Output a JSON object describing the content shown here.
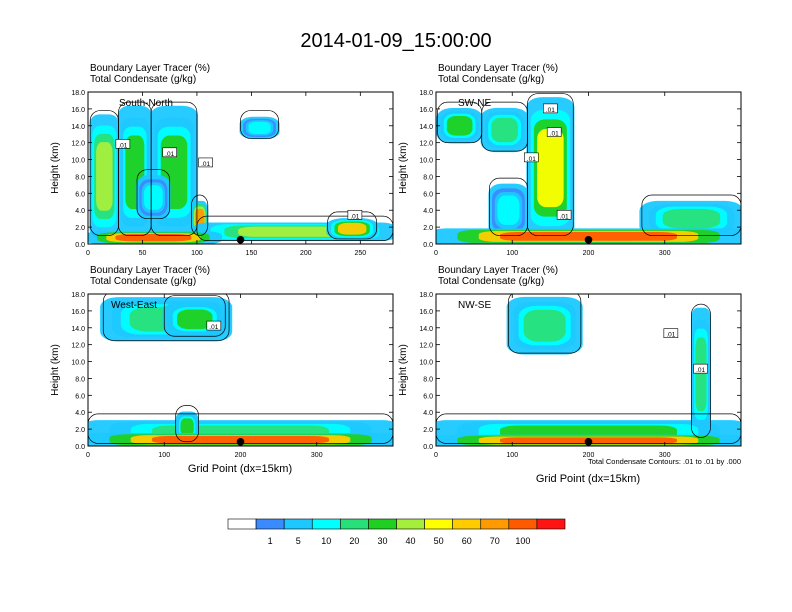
{
  "title": "2014-01-09_15:00:00",
  "chart_data": [
    {
      "type": "heatmap",
      "name": "South-North",
      "panel_label": "South-North",
      "subtitle_line1": "Boundary Layer Tracer   (%)",
      "subtitle_line2": "Total Condensate   (g/kg)",
      "ylabel": "Height (km)",
      "xlabel": "",
      "xlim": [
        0,
        280
      ],
      "ylim": [
        0,
        18
      ],
      "x_ticks": [
        "0",
        "50",
        "100",
        "150",
        "200",
        "250"
      ],
      "x_tick_values": [
        0,
        50,
        100,
        150,
        200,
        250
      ],
      "y_ticks": [
        "0.0",
        "2.0",
        "4.0",
        "6.0",
        "8.0",
        "10.0",
        "12.0",
        "14.0",
        "16.0",
        "18.0"
      ],
      "marker_x": 140,
      "contour_labels": [
        {
          "text": ".01",
          "x": 32,
          "y": 11.8
        },
        {
          "text": ".01",
          "x": 75,
          "y": 10.8
        },
        {
          "text": ".01",
          "x": 108,
          "y": 9.6
        },
        {
          "text": ".01",
          "x": 245,
          "y": 3.4
        }
      ],
      "blobs": [
        {
          "x0": 2,
          "x1": 28,
          "y0": 1,
          "y1": 15,
          "level": 40
        },
        {
          "x0": 28,
          "x1": 58,
          "y0": 1,
          "y1": 16,
          "level": 30
        },
        {
          "x0": 58,
          "x1": 100,
          "y0": 1,
          "y1": 16,
          "level": 30
        },
        {
          "x0": 95,
          "x1": 110,
          "y0": 1,
          "y1": 5,
          "level": 70
        },
        {
          "x0": 45,
          "x1": 75,
          "y0": 3,
          "y1": 8,
          "level": 10
        },
        {
          "x0": 140,
          "x1": 175,
          "y0": 12.5,
          "y1": 15,
          "level": 10
        },
        {
          "x0": 100,
          "x1": 280,
          "y0": 0.4,
          "y1": 2.5,
          "level": 40
        },
        {
          "x0": 220,
          "x1": 265,
          "y0": 0.6,
          "y1": 3,
          "level": 60
        },
        {
          "x0": 0,
          "x1": 120,
          "y0": 0,
          "y1": 1.5,
          "level": 100
        }
      ]
    },
    {
      "type": "heatmap",
      "name": "SW-NE",
      "panel_label": "SW-NE",
      "subtitle_line1": "Boundary Layer Tracer   (%)",
      "subtitle_line2": "Total Condensate   (g/kg)",
      "ylabel": "Height (km)",
      "xlabel": "",
      "xlim": [
        0,
        400
      ],
      "ylim": [
        0,
        18
      ],
      "x_ticks": [
        "0",
        "100",
        "200",
        "300"
      ],
      "x_tick_values": [
        0,
        100,
        200,
        300
      ],
      "y_ticks": [
        "0.0",
        "2.0",
        "4.0",
        "6.0",
        "8.0",
        "10.0",
        "12.0",
        "14.0",
        "16.0",
        "18.0"
      ],
      "marker_x": 200,
      "contour_labels": [
        {
          "text": ".01",
          "x": 150,
          "y": 16
        },
        {
          "text": ".01",
          "x": 155,
          "y": 13.2
        },
        {
          "text": ".01",
          "x": 125,
          "y": 10.2
        },
        {
          "text": ".01",
          "x": 168,
          "y": 3.4
        }
      ],
      "blobs": [
        {
          "x0": 2,
          "x1": 60,
          "y0": 12,
          "y1": 16,
          "level": 30
        },
        {
          "x0": 60,
          "x1": 120,
          "y0": 11,
          "y1": 16,
          "level": 20
        },
        {
          "x0": 120,
          "x1": 180,
          "y0": 1,
          "y1": 17,
          "level": 50
        },
        {
          "x0": 70,
          "x1": 120,
          "y0": 1,
          "y1": 7,
          "level": 10
        },
        {
          "x0": 270,
          "x1": 400,
          "y0": 1,
          "y1": 5,
          "level": 20
        },
        {
          "x0": 0,
          "x1": 400,
          "y0": 0,
          "y1": 1.8,
          "level": 100
        }
      ]
    },
    {
      "type": "heatmap",
      "name": "West-East",
      "panel_label": "West-East",
      "subtitle_line1": "Boundary Layer Tracer   (%)",
      "subtitle_line2": "Total Condensate   (g/kg)",
      "ylabel": "Height (km)",
      "xlabel": "Grid Point (dx=15km)",
      "xlim": [
        0,
        400
      ],
      "ylim": [
        0,
        18
      ],
      "x_ticks": [
        "0",
        "100",
        "200",
        "300"
      ],
      "x_tick_values": [
        0,
        100,
        200,
        300
      ],
      "y_ticks": [
        "0.0",
        "2.0",
        "4.0",
        "6.0",
        "8.0",
        "10.0",
        "12.0",
        "14.0",
        "16.0",
        "18.0"
      ],
      "marker_x": 200,
      "contour_labels": [
        {
          "text": ".01",
          "x": 165,
          "y": 14.2
        }
      ],
      "blobs": [
        {
          "x0": 20,
          "x1": 185,
          "y0": 12.5,
          "y1": 17.5,
          "level": 20
        },
        {
          "x0": 100,
          "x1": 180,
          "y0": 13,
          "y1": 17,
          "level": 30
        },
        {
          "x0": 0,
          "x1": 400,
          "y0": 0.3,
          "y1": 3,
          "level": 20
        },
        {
          "x0": 115,
          "x1": 145,
          "y0": 0.5,
          "y1": 4,
          "level": 30
        },
        {
          "x0": 0,
          "x1": 400,
          "y0": 0,
          "y1": 1.5,
          "level": 100
        }
      ]
    },
    {
      "type": "heatmap",
      "name": "NW-SE",
      "panel_label": "NW-SE",
      "subtitle_line1": "Boundary Layer Tracer   (%)",
      "subtitle_line2": "Total Condensate   (g/kg)",
      "ylabel": "Height (km)",
      "xlabel": "Grid Point (dx=15km)",
      "xlim": [
        0,
        400
      ],
      "ylim": [
        0,
        18
      ],
      "x_ticks": [
        "0",
        "100",
        "200",
        "300"
      ],
      "x_tick_values": [
        0,
        100,
        200,
        300
      ],
      "y_ticks": [
        "0.0",
        "2.0",
        "4.0",
        "6.0",
        "8.0",
        "10.0",
        "12.0",
        "14.0",
        "16.0",
        "18.0"
      ],
      "marker_x": 200,
      "contour_labels": [
        {
          "text": ".01",
          "x": 308,
          "y": 13.3
        },
        {
          "text": ".01",
          "x": 347,
          "y": 9.1
        }
      ],
      "blobs": [
        {
          "x0": 95,
          "x1": 190,
          "y0": 11,
          "y1": 17.5,
          "level": 20
        },
        {
          "x0": 335,
          "x1": 360,
          "y0": 1,
          "y1": 16,
          "level": 20
        },
        {
          "x0": 0,
          "x1": 400,
          "y0": 0.3,
          "y1": 3,
          "level": 30
        },
        {
          "x0": 0,
          "x1": 400,
          "y0": 0,
          "y1": 1.3,
          "level": 100
        }
      ],
      "footnote": "Total Condensate Contours: .01 to .01 by .000"
    }
  ],
  "colorbar": {
    "labels": [
      "1",
      "5",
      "10",
      "20",
      "30",
      "40",
      "50",
      "60",
      "70",
      "100"
    ],
    "colors": [
      "#ffffff",
      "#3a8bff",
      "#1cc8ff",
      "#00ffff",
      "#28e07a",
      "#20d020",
      "#a6ee3c",
      "#ffff00",
      "#ffcc00",
      "#ff9a00",
      "#ff5a00",
      "#ff1414"
    ]
  }
}
